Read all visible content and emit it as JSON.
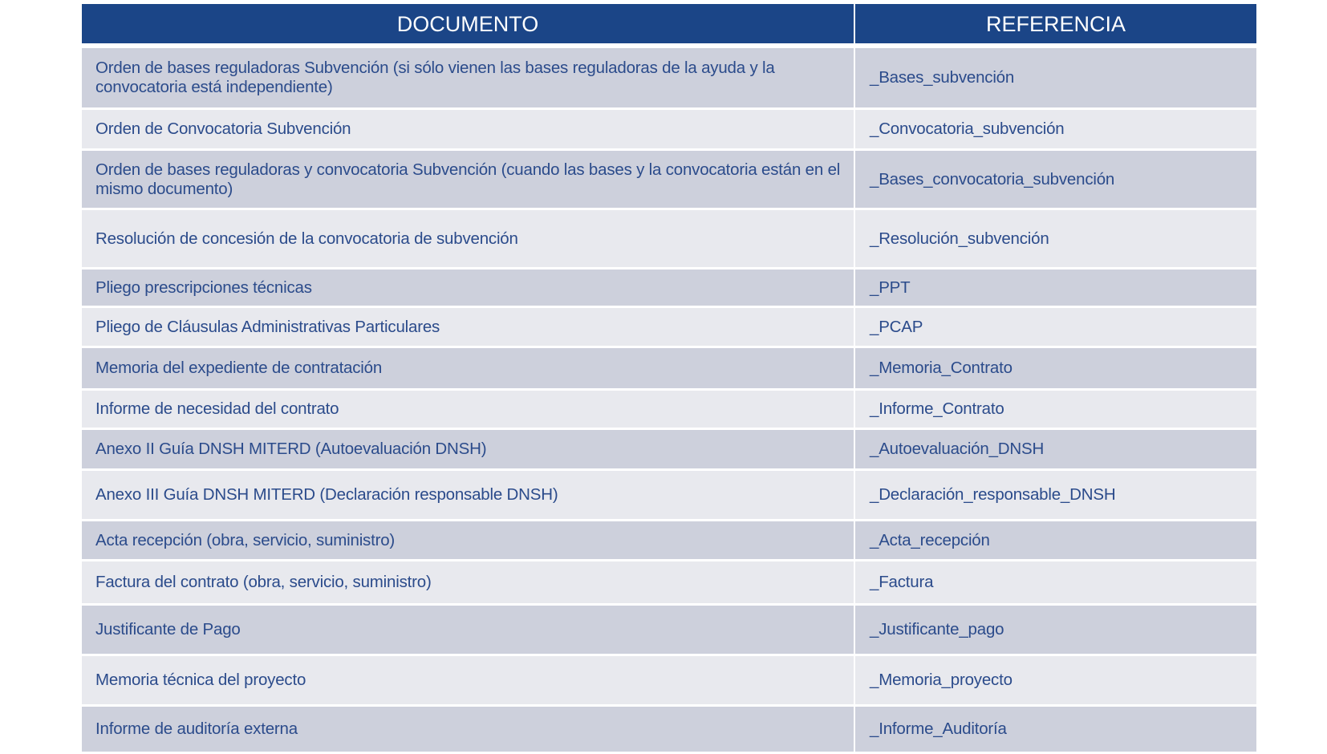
{
  "header": {
    "documento": "DOCUMENTO",
    "referencia": "REFERENCIA"
  },
  "colors": {
    "header": "#1b4587",
    "row_dark": "#cdd0dc",
    "row_light": "#e8e9ee",
    "text": "#2b4b8b"
  },
  "rows": [
    {
      "documento": "Orden de bases reguladoras Subvención (si sólo vienen las bases reguladoras de la ayuda y la convocatoria está independiente)",
      "referencia": "_Bases_subvención"
    },
    {
      "documento": "Orden de Convocatoria Subvención",
      "referencia": "_Convocatoria_subvención"
    },
    {
      "documento": "Orden de bases reguladoras y convocatoria Subvención (cuando las bases y la convocatoria están en el mismo documento)",
      "referencia": "_Bases_convocatoria_subvención"
    },
    {
      "documento": "Resolución de concesión de la convocatoria de subvención",
      "referencia": "_Resolución_subvención"
    },
    {
      "documento": "Pliego prescripciones técnicas",
      "referencia": "_PPT"
    },
    {
      "documento": "Pliego de Cláusulas Administrativas Particulares",
      "referencia": "_PCAP"
    },
    {
      "documento": "Memoria del expediente de contratación",
      "referencia": "_Memoria_Contrato"
    },
    {
      "documento": "Informe de necesidad del contrato",
      "referencia": "_Informe_Contrato"
    },
    {
      "documento": "Anexo II Guía DNSH MITERD (Autoevaluación DNSH)",
      "referencia": "_Autoevaluación_DNSH"
    },
    {
      "documento": "Anexo III Guía DNSH MITERD (Declaración responsable DNSH)",
      "referencia": "_Declaración_responsable_DNSH"
    },
    {
      "documento": "Acta recepción (obra, servicio, suministro)",
      "referencia": "_Acta_recepción"
    },
    {
      "documento": "Factura del contrato (obra, servicio, suministro)",
      "referencia": "_Factura"
    },
    {
      "documento": "Justificante de Pago",
      "referencia": "_Justificante_pago"
    },
    {
      "documento": "Memoria técnica del proyecto",
      "referencia": "_Memoria_proyecto"
    },
    {
      "documento": "Informe de auditoría externa",
      "referencia": "_Informe_Auditoría"
    }
  ]
}
